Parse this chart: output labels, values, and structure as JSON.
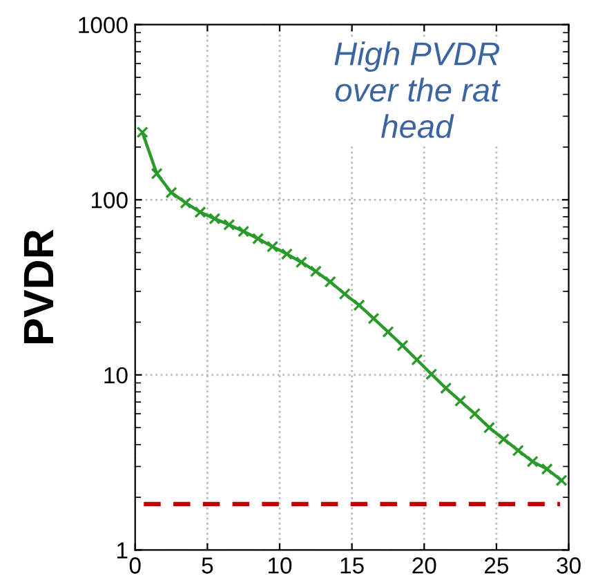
{
  "chart_data": {
    "type": "line",
    "ylabel": "PVDR",
    "log": "y",
    "grid": true,
    "marker": "cross",
    "line_style": "solid",
    "xlim": [
      0,
      30
    ],
    "xticks": [
      0,
      5,
      10,
      15,
      20,
      25,
      30
    ],
    "ylim": [
      1,
      1000
    ],
    "yticks": [
      1,
      10,
      100,
      1000
    ],
    "annotations": [
      "High PVDR\nover the rat\nhead"
    ],
    "ref_lines": [
      {
        "axis": "y",
        "value": 1.83,
        "color": "#c00000",
        "line_style": "dashed"
      }
    ],
    "series": [
      {
        "color": "#2a9a2a",
        "x": [
          0.5,
          1.5,
          2.5,
          3.5,
          4.5,
          5.5,
          6.5,
          7.5,
          8.5,
          9.5,
          10.5,
          11.5,
          12.5,
          13.5,
          14.5,
          15.5,
          16.5,
          17.5,
          18.5,
          19.5,
          20.5,
          21.5,
          22.5,
          23.5,
          24.5,
          25.5,
          26.5,
          27.5,
          28.5,
          29.5
        ],
        "values": [
          243,
          141,
          110,
          96,
          85,
          78,
          72,
          66,
          60,
          54,
          49,
          44,
          39,
          34,
          29,
          25,
          21,
          17.6,
          14.7,
          12.2,
          10.1,
          8.4,
          7.1,
          6.0,
          5.0,
          4.3,
          3.7,
          3.2,
          2.9,
          2.5
        ]
      }
    ]
  }
}
